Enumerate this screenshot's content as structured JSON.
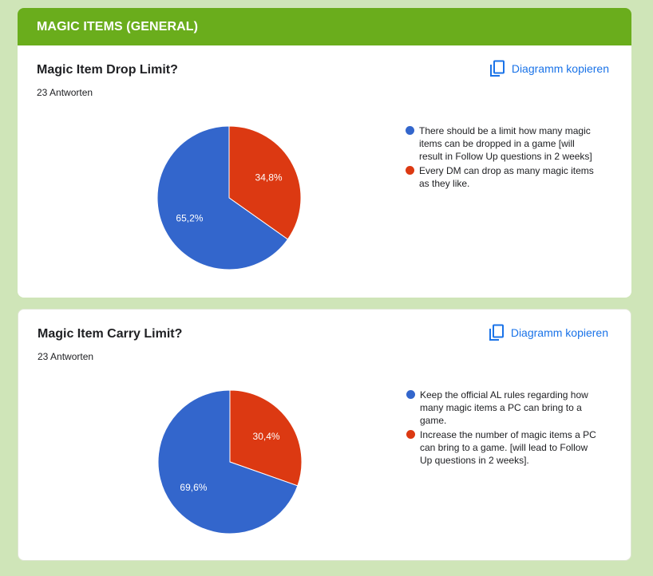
{
  "section_title": "MAGIC ITEMS (GENERAL)",
  "copy_label": "Diagramm kopieren",
  "colors": {
    "blue": "#3366cc",
    "red": "#dc3912",
    "header": "#6aad1c",
    "link": "#1a73e8"
  },
  "chart_data": [
    {
      "type": "pie",
      "title": "Magic Item Drop Limit?",
      "responses": "23 Antworten",
      "labels": [
        "There should be a limit how many magic items can be dropped in a game [will result in Follow Up questions in 2 weeks]",
        "Every DM can drop as many magic items as they like."
      ],
      "values": [
        65.2,
        34.8
      ],
      "value_labels": [
        "65,2%",
        "34,8%"
      ]
    },
    {
      "type": "pie",
      "title": "Magic Item Carry Limit?",
      "responses": "23 Antworten",
      "labels": [
        "Keep the official AL rules regarding how many magic items a PC can bring to a game.",
        "Increase the number of magic items a PC can bring to a game. [will lead to Follow Up questions in 2 weeks]."
      ],
      "values": [
        69.6,
        30.4
      ],
      "value_labels": [
        "69,6%",
        "30,4%"
      ]
    }
  ]
}
